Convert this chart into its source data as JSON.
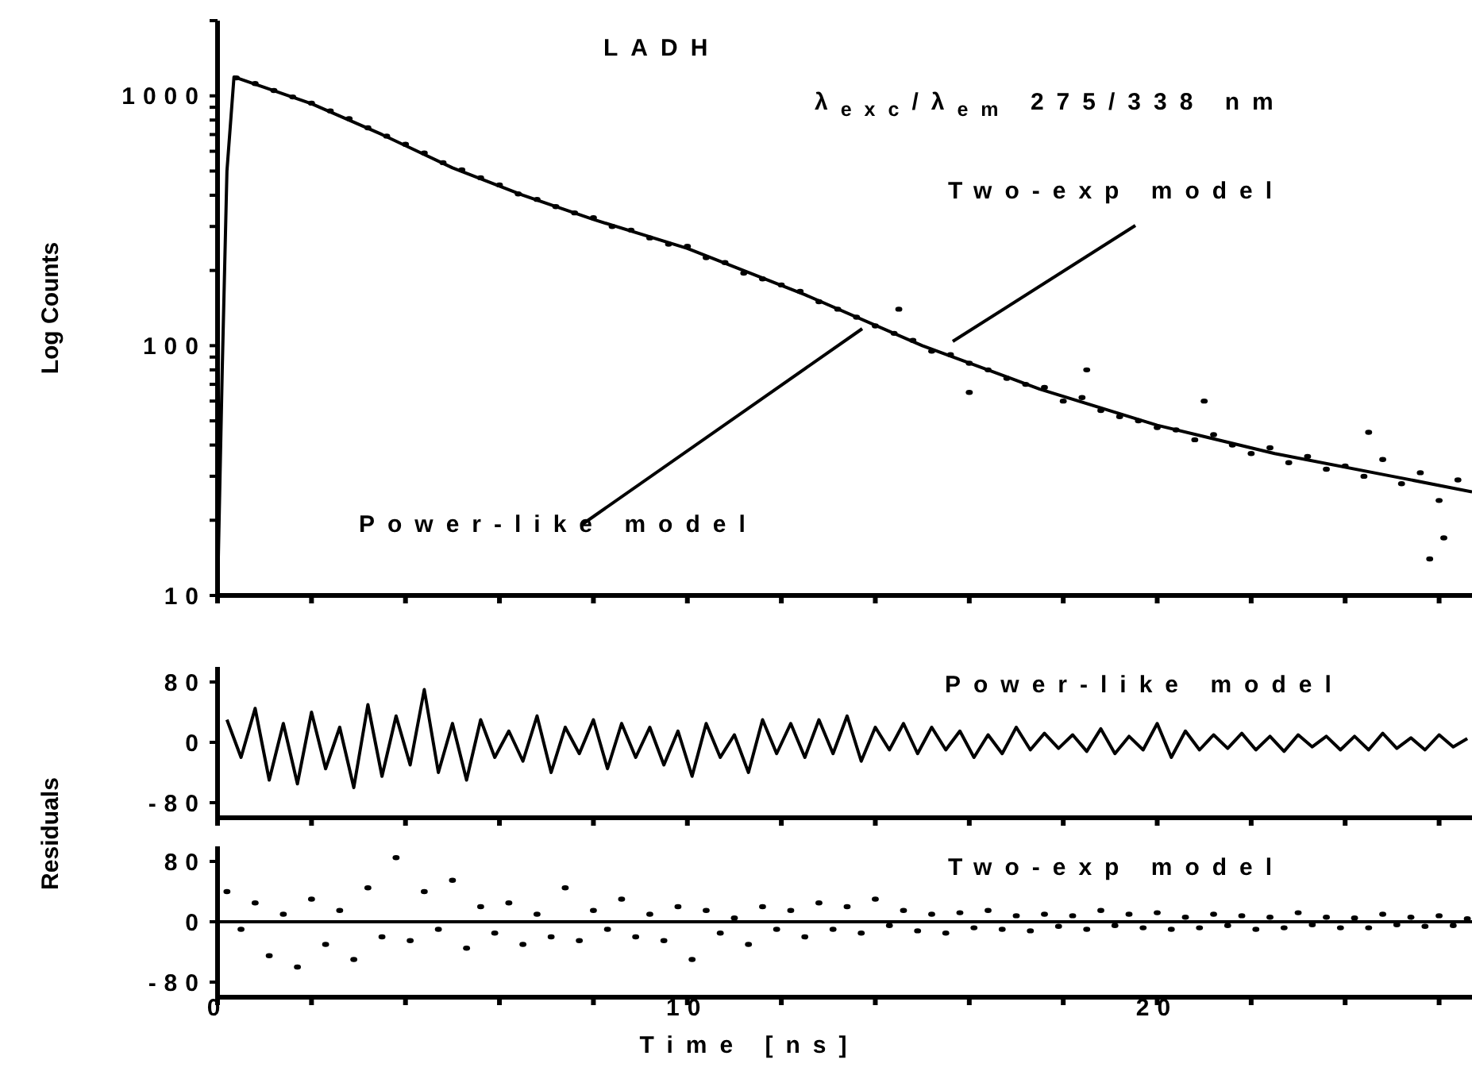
{
  "chart_data": [
    {
      "type": "scatter",
      "ylabel": "Log Counts",
      "log": true,
      "tick_labels": "y",
      "xlim": [
        0,
        26.7
      ],
      "ylim": [
        10,
        2000
      ],
      "xticks": [
        0,
        {
          "value": 2,
          "label": null
        },
        {
          "value": 4,
          "label": null
        },
        {
          "value": 6,
          "label": null
        },
        {
          "value": 8,
          "label": null
        },
        10,
        {
          "value": 12,
          "label": null
        },
        {
          "value": 14,
          "label": null
        },
        {
          "value": 16,
          "label": null
        },
        {
          "value": 18,
          "label": null
        },
        20,
        {
          "value": 22,
          "label": null
        },
        {
          "value": 24,
          "label": null
        },
        {
          "value": 26,
          "label": null
        }
      ],
      "yticks": [
        10,
        {
          "value": 20,
          "label": null
        },
        {
          "value": 30,
          "label": null
        },
        {
          "value": 40,
          "label": null
        },
        {
          "value": 50,
          "label": null
        },
        {
          "value": 60,
          "label": null
        },
        {
          "value": 70,
          "label": null
        },
        {
          "value": 80,
          "label": null
        },
        {
          "value": 90,
          "label": null
        },
        100,
        {
          "value": 200,
          "label": null
        },
        {
          "value": 300,
          "label": null
        },
        {
          "value": 400,
          "label": null
        },
        {
          "value": 500,
          "label": null
        },
        {
          "value": 600,
          "label": null
        },
        {
          "value": 700,
          "label": null
        },
        {
          "value": 800,
          "label": null
        },
        {
          "value": 900,
          "label": null
        },
        1000,
        {
          "value": 2000,
          "label": null
        }
      ],
      "annotations": [
        "LADH",
        "λ$_{exc}$/λ$_{em}$  275/338 nm",
        "Two-exp model",
        "Power-like model"
      ],
      "series": [
        {
          "marker": "circle",
          "color": "#000000",
          "x": [
            0.4,
            0.8,
            1.2,
            1.6,
            2.0,
            2.4,
            2.8,
            3.2,
            3.6,
            4.0,
            4.4,
            4.8,
            5.2,
            5.6,
            6.0,
            6.4,
            6.8,
            7.2,
            7.6,
            8.0,
            8.4,
            8.8,
            9.2,
            9.6,
            10.0,
            10.4,
            10.8,
            11.2,
            11.6,
            12.0,
            12.4,
            12.8,
            13.2,
            13.6,
            14.0,
            14.4,
            14.8,
            15.2,
            15.6,
            16.0,
            16.4,
            16.8,
            17.2,
            17.6,
            18.0,
            18.4,
            18.8,
            19.2,
            19.6,
            20.0,
            20.4,
            20.8,
            21.2,
            21.6,
            22.0,
            22.4,
            22.8,
            23.2,
            23.6,
            24.0,
            24.4,
            24.8,
            25.2,
            25.6,
            26.0,
            26.4,
            25.8,
            26.1,
            24.5,
            21.0,
            14.5,
            16.0,
            18.5
          ],
          "values": [
            1180,
            1120,
            1050,
            990,
            935,
            870,
            810,
            745,
            690,
            640,
            590,
            540,
            505,
            470,
            440,
            405,
            385,
            360,
            340,
            325,
            300,
            290,
            270,
            255,
            250,
            225,
            215,
            195,
            185,
            175,
            165,
            150,
            140,
            130,
            120,
            112,
            105,
            95,
            92,
            85,
            80,
            74,
            70,
            68,
            60,
            62,
            55,
            52,
            50,
            47,
            46,
            42,
            44,
            40,
            37,
            39,
            34,
            36,
            32,
            33,
            30,
            35,
            28,
            31,
            24,
            29,
            14,
            17,
            45,
            60,
            140,
            65,
            80
          ]
        },
        {
          "type": "line",
          "marker": "none",
          "color": "#000000",
          "x": [
            0,
            0.1,
            0.2,
            0.35,
            1,
            2,
            3.5,
            5,
            6.5,
            8,
            10,
            12.5,
            15,
            17.5,
            20,
            22.5,
            25,
            26.7
          ],
          "values": [
            10,
            80,
            500,
            1190,
            1080,
            930,
            700,
            515,
            400,
            320,
            245,
            160,
            100,
            67,
            48,
            37,
            30,
            26
          ]
        }
      ]
    },
    {
      "type": "line",
      "ylabel": "Residuals",
      "tick_labels": "y",
      "xlim": [
        0,
        26.7
      ],
      "ylim": [
        -100,
        100
      ],
      "xticks": [
        0,
        {
          "value": 2,
          "label": null
        },
        {
          "value": 4,
          "label": null
        },
        {
          "value": 6,
          "label": null
        },
        {
          "value": 8,
          "label": null
        },
        10,
        {
          "value": 12,
          "label": null
        },
        {
          "value": 14,
          "label": null
        },
        {
          "value": 16,
          "label": null
        },
        {
          "value": 18,
          "label": null
        },
        20,
        {
          "value": 22,
          "label": null
        },
        {
          "value": 24,
          "label": null
        },
        {
          "value": 26,
          "label": null
        }
      ],
      "yticks": [
        -80,
        0,
        80
      ],
      "annotations": [
        "Power-like model"
      ],
      "series": [
        {
          "marker": "none",
          "color": "#000000",
          "x": [
            0.2,
            0.5,
            0.8,
            1.1,
            1.4,
            1.7,
            2.0,
            2.3,
            2.6,
            2.9,
            3.2,
            3.5,
            3.8,
            4.1,
            4.4,
            4.7,
            5.0,
            5.3,
            5.6,
            5.9,
            6.2,
            6.5,
            6.8,
            7.1,
            7.4,
            7.7,
            8.0,
            8.3,
            8.6,
            8.9,
            9.2,
            9.5,
            9.8,
            10.1,
            10.4,
            10.7,
            11.0,
            11.3,
            11.6,
            11.9,
            12.2,
            12.5,
            12.8,
            13.1,
            13.4,
            13.7,
            14.0,
            14.3,
            14.6,
            14.9,
            15.2,
            15.5,
            15.8,
            16.1,
            16.4,
            16.7,
            17.0,
            17.3,
            17.6,
            17.9,
            18.2,
            18.5,
            18.8,
            19.1,
            19.4,
            19.7,
            20.0,
            20.3,
            20.6,
            20.9,
            21.2,
            21.5,
            21.8,
            22.1,
            22.4,
            22.7,
            23.0,
            23.3,
            23.6,
            23.9,
            24.2,
            24.5,
            24.8,
            25.1,
            25.4,
            25.7,
            26.0,
            26.3,
            26.6
          ],
          "values": [
            30,
            -20,
            45,
            -50,
            25,
            -55,
            40,
            -35,
            20,
            -60,
            50,
            -45,
            35,
            -30,
            70,
            -40,
            25,
            -50,
            30,
            -20,
            15,
            -25,
            35,
            -40,
            20,
            -15,
            30,
            -35,
            25,
            -20,
            20,
            -30,
            15,
            -45,
            25,
            -20,
            10,
            -40,
            30,
            -15,
            25,
            -20,
            30,
            -15,
            35,
            -25,
            20,
            -10,
            25,
            -15,
            20,
            -10,
            15,
            -20,
            10,
            -15,
            20,
            -10,
            12,
            -8,
            10,
            -12,
            18,
            -15,
            8,
            -10,
            25,
            -20,
            15,
            -10,
            10,
            -8,
            12,
            -10,
            8,
            -12,
            10,
            -6,
            8,
            -10,
            8,
            -10,
            12,
            -8,
            6,
            -10,
            10,
            -6,
            5
          ]
        }
      ]
    },
    {
      "type": "scatter",
      "xlabel": "Time [ns]",
      "xlim": [
        0,
        26.7
      ],
      "ylim": [
        -100,
        100
      ],
      "xticks": [
        0,
        {
          "value": 2,
          "label": null
        },
        {
          "value": 4,
          "label": null
        },
        {
          "value": 6,
          "label": null
        },
        {
          "value": 8,
          "label": null
        },
        10,
        {
          "value": 12,
          "label": null
        },
        {
          "value": 14,
          "label": null
        },
        {
          "value": 16,
          "label": null
        },
        {
          "value": 18,
          "label": null
        },
        20,
        {
          "value": 22,
          "label": null
        },
        {
          "value": 24,
          "label": null
        },
        {
          "value": 26,
          "label": null
        }
      ],
      "yticks": [
        -80,
        0,
        80
      ],
      "annotations": [
        "Two-exp model"
      ],
      "ref_lines": [
        {
          "axis": "y",
          "value": 0,
          "color": "#000000"
        }
      ],
      "series": [
        {
          "marker": "circle",
          "color": "#000000",
          "x": [
            0.2,
            0.5,
            0.8,
            1.1,
            1.4,
            1.7,
            2.0,
            2.3,
            2.6,
            2.9,
            3.2,
            3.5,
            3.8,
            4.1,
            4.4,
            4.7,
            5.0,
            5.3,
            5.6,
            5.9,
            6.2,
            6.5,
            6.8,
            7.1,
            7.4,
            7.7,
            8.0,
            8.3,
            8.6,
            8.9,
            9.2,
            9.5,
            9.8,
            10.1,
            10.4,
            10.7,
            11.0,
            11.3,
            11.6,
            11.9,
            12.2,
            12.5,
            12.8,
            13.1,
            13.4,
            13.7,
            14.0,
            14.3,
            14.6,
            14.9,
            15.2,
            15.5,
            15.8,
            16.1,
            16.4,
            16.7,
            17.0,
            17.3,
            17.6,
            17.9,
            18.2,
            18.5,
            18.8,
            19.1,
            19.4,
            19.7,
            20.0,
            20.3,
            20.6,
            20.9,
            21.2,
            21.5,
            21.8,
            22.1,
            22.4,
            22.7,
            23.0,
            23.3,
            23.6,
            23.9,
            24.2,
            24.5,
            24.8,
            25.1,
            25.4,
            25.7,
            26.0,
            26.3,
            26.6
          ],
          "values": [
            40,
            -10,
            25,
            -45,
            10,
            -60,
            30,
            -30,
            15,
            -50,
            45,
            -20,
            85,
            -25,
            40,
            -10,
            55,
            -35,
            20,
            -15,
            25,
            -30,
            10,
            -20,
            45,
            -25,
            15,
            -10,
            30,
            -20,
            10,
            -25,
            20,
            -50,
            15,
            -15,
            5,
            -30,
            20,
            -10,
            15,
            -20,
            25,
            -10,
            20,
            -15,
            30,
            -5,
            15,
            -12,
            10,
            -15,
            12,
            -8,
            15,
            -10,
            8,
            -12,
            10,
            -6,
            8,
            -10,
            15,
            -5,
            10,
            -8,
            12,
            -10,
            6,
            -8,
            10,
            -5,
            8,
            -10,
            6,
            -8,
            12,
            -4,
            6,
            -8,
            5,
            -8,
            10,
            -4,
            6,
            -6,
            8,
            -5,
            4
          ]
        }
      ]
    }
  ]
}
